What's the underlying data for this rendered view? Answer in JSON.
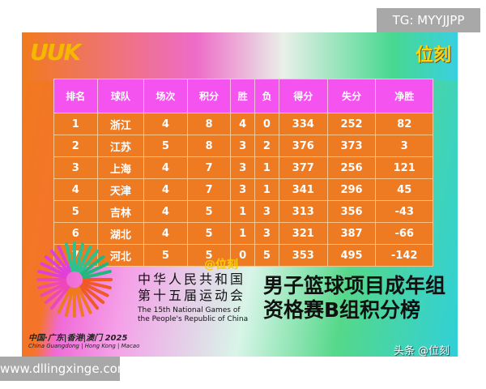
{
  "overlay": {
    "tg": "TG: MYYJJPP",
    "site": "www.dllingxinge.com"
  },
  "poster": {
    "logo": "UUK",
    "brand": "位刻",
    "watermark": "@位刻",
    "credit": "头条 @位刻",
    "games_cn_1": "中华人民共和国",
    "games_cn_2": "第十五届运动会",
    "games_en_1": "The 15th National Games of",
    "games_en_2": "the People's Republic of China",
    "title_1": "男子篮球项目成年组",
    "title_2": "资格赛B组积分榜",
    "host_cn": "中国·广东|香港|澳门 2025",
    "host_en": "China Guangdong | Hong Kong | Macao"
  },
  "table": {
    "headers": [
      "排名",
      "球队",
      "场次",
      "积分",
      "胜",
      "负",
      "得分",
      "失分",
      "净胜"
    ],
    "rows": [
      [
        "1",
        "浙江",
        "4",
        "8",
        "4",
        "0",
        "334",
        "252",
        "82"
      ],
      [
        "2",
        "江苏",
        "5",
        "8",
        "3",
        "2",
        "376",
        "373",
        "3"
      ],
      [
        "3",
        "上海",
        "4",
        "7",
        "3",
        "1",
        "377",
        "256",
        "121"
      ],
      [
        "4",
        "天津",
        "4",
        "7",
        "3",
        "1",
        "341",
        "296",
        "45"
      ],
      [
        "5",
        "吉林",
        "4",
        "5",
        "1",
        "3",
        "313",
        "356",
        "-43"
      ],
      [
        "6",
        "湖北",
        "4",
        "5",
        "1",
        "3",
        "321",
        "387",
        "-66"
      ],
      [
        "7",
        "河北",
        "5",
        "5",
        "0",
        "5",
        "353",
        "495",
        "-142"
      ]
    ]
  }
}
